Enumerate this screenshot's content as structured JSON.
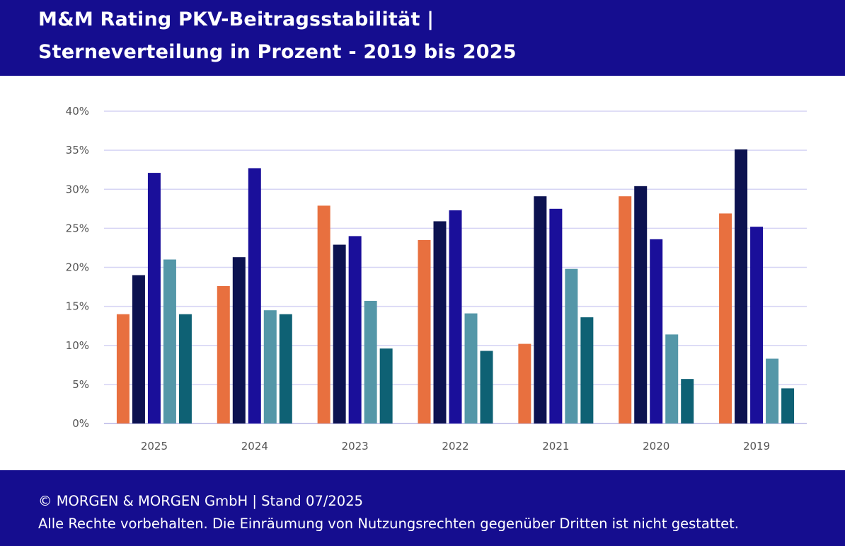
{
  "header": {
    "title_line1": "M&M Rating PKV-Beitragsstabilität |",
    "title_line2": "Sterneverteilung in Prozent - 2019 bis 2025"
  },
  "footer": {
    "line1": "© MORGEN & MORGEN GmbH | Stand 07/2025",
    "line2": "Alle Rechte vorbehalten. Die Einräumung von Nutzungsrechten gegenüber Dritten ist nicht gestattet."
  },
  "chart_data": {
    "type": "bar",
    "categories": [
      "2025",
      "2024",
      "2023",
      "2022",
      "2021",
      "2020",
      "2019"
    ],
    "ylim": [
      0,
      40
    ],
    "yticks": [
      "0%",
      "5%",
      "10%",
      "15%",
      "20%",
      "25%",
      "30%",
      "35%",
      "40%"
    ],
    "grid": true,
    "series": [
      {
        "color": "#e8703f",
        "values": [
          14.0,
          17.6,
          27.9,
          23.5,
          10.2,
          29.1,
          26.9
        ]
      },
      {
        "color": "#0c1250",
        "values": [
          19.0,
          21.3,
          22.9,
          25.9,
          29.1,
          30.4,
          35.1
        ]
      },
      {
        "color": "#1a0f9a",
        "values": [
          32.1,
          32.7,
          24.0,
          27.3,
          27.5,
          23.6,
          25.2
        ]
      },
      {
        "color": "#5497a8",
        "values": [
          21.0,
          14.5,
          15.7,
          14.1,
          19.8,
          11.4,
          8.3
        ]
      },
      {
        "color": "#0e6174",
        "values": [
          14.0,
          14.0,
          9.6,
          9.3,
          13.6,
          5.7,
          4.5
        ]
      }
    ]
  }
}
